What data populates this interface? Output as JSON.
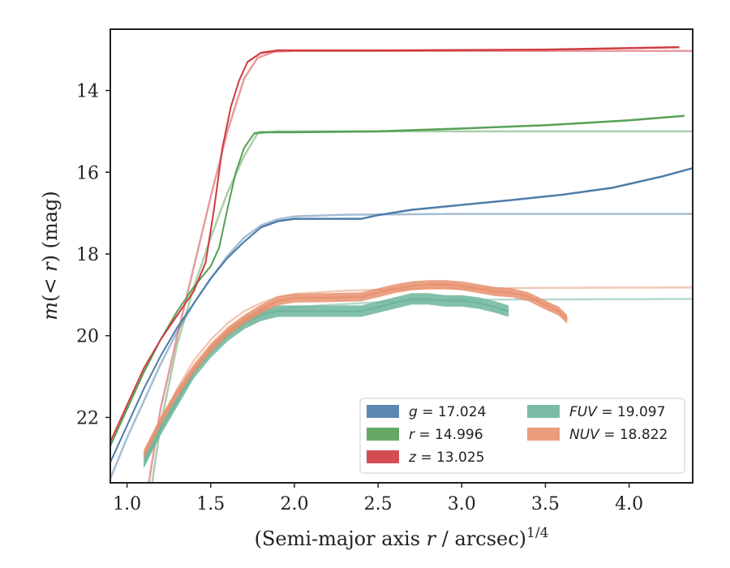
{
  "chart_data": {
    "type": "line",
    "xlabel_main": "(Semi-major axis ",
    "xlabel_var": "r",
    "xlabel_unit": " / arcsec)",
    "xlabel_exp": "1/4",
    "ylabel_main": "m",
    "ylabel_paren": "(< ",
    "ylabel_var": "r",
    "ylabel_close": ") (mag)",
    "xlim": [
      0.9,
      4.38
    ],
    "ylim": [
      23.6,
      12.5
    ],
    "y_inverted": true,
    "xticks": [
      1.0,
      1.5,
      2.0,
      2.5,
      3.0,
      3.5,
      4.0
    ],
    "xtick_labels": [
      "1.0",
      "1.5",
      "2.0",
      "2.5",
      "3.0",
      "3.5",
      "4.0"
    ],
    "yticks": [
      14,
      16,
      18,
      20,
      22
    ],
    "ytick_labels": [
      "14",
      "16",
      "18",
      "20",
      "22"
    ],
    "grid": false,
    "legend_position": "lower-right",
    "legend": [
      {
        "var": "g",
        "text": " = 17.024",
        "color": "#4c7ba8"
      },
      {
        "var": "FUV",
        "text": " = 19.097",
        "color": "#6db59b"
      },
      {
        "var": "r",
        "text": " = 14.996",
        "color": "#55a055"
      },
      {
        "var": "NUV",
        "text": " = 18.822",
        "color": "#e8916e"
      },
      {
        "var": "z",
        "text": " = 13.025",
        "color": "#cf3a3f"
      }
    ],
    "series": [
      {
        "name": "g",
        "color": "#4c7ba8",
        "band_width": 0.05,
        "data": [
          [
            0.9,
            23.1
          ],
          [
            1.0,
            22.2
          ],
          [
            1.1,
            21.3
          ],
          [
            1.2,
            20.5
          ],
          [
            1.3,
            19.8
          ],
          [
            1.4,
            19.2
          ],
          [
            1.5,
            18.6
          ],
          [
            1.6,
            18.1
          ],
          [
            1.7,
            17.7
          ],
          [
            1.8,
            17.35
          ],
          [
            1.9,
            17.2
          ],
          [
            2.0,
            17.14
          ],
          [
            2.2,
            17.14
          ],
          [
            2.4,
            17.14
          ],
          [
            2.5,
            17.05
          ],
          [
            2.7,
            16.92
          ],
          [
            3.0,
            16.8
          ],
          [
            3.3,
            16.68
          ],
          [
            3.6,
            16.55
          ],
          [
            3.9,
            16.38
          ],
          [
            4.2,
            16.1
          ],
          [
            4.38,
            15.9
          ]
        ],
        "model": [
          [
            0.9,
            23.5
          ],
          [
            1.0,
            22.5
          ],
          [
            1.1,
            21.6
          ],
          [
            1.2,
            20.7
          ],
          [
            1.3,
            19.9
          ],
          [
            1.4,
            19.2
          ],
          [
            1.5,
            18.6
          ],
          [
            1.6,
            18.05
          ],
          [
            1.7,
            17.6
          ],
          [
            1.8,
            17.3
          ],
          [
            1.9,
            17.15
          ],
          [
            2.0,
            17.08
          ],
          [
            2.3,
            17.04
          ],
          [
            3.0,
            17.02
          ],
          [
            4.38,
            17.02
          ]
        ]
      },
      {
        "name": "r",
        "color": "#55a055",
        "band_width": 0.05,
        "data": [
          [
            0.9,
            22.7
          ],
          [
            1.0,
            21.8
          ],
          [
            1.1,
            20.9
          ],
          [
            1.2,
            20.1
          ],
          [
            1.3,
            19.4
          ],
          [
            1.4,
            18.8
          ],
          [
            1.5,
            18.3
          ],
          [
            1.55,
            17.85
          ],
          [
            1.6,
            16.9
          ],
          [
            1.65,
            16.0
          ],
          [
            1.7,
            15.4
          ],
          [
            1.76,
            15.05
          ],
          [
            1.8,
            15.02
          ],
          [
            2.0,
            15.02
          ],
          [
            2.5,
            15.0
          ],
          [
            3.0,
            14.93
          ],
          [
            3.5,
            14.85
          ],
          [
            4.0,
            14.73
          ],
          [
            4.33,
            14.62
          ]
        ],
        "model": [
          [
            1.15,
            23.6
          ],
          [
            1.2,
            22.2
          ],
          [
            1.3,
            20.2
          ],
          [
            1.4,
            18.8
          ],
          [
            1.5,
            17.6
          ],
          [
            1.6,
            16.5
          ],
          [
            1.7,
            15.6
          ],
          [
            1.78,
            15.05
          ],
          [
            1.9,
            15.0
          ],
          [
            2.5,
            15.0
          ],
          [
            4.38,
            15.0
          ]
        ]
      },
      {
        "name": "z",
        "color": "#cf3a3f",
        "band_width": 0.05,
        "data": [
          [
            0.9,
            22.6
          ],
          [
            1.0,
            21.7
          ],
          [
            1.1,
            20.8
          ],
          [
            1.2,
            20.1
          ],
          [
            1.3,
            19.5
          ],
          [
            1.4,
            18.9
          ],
          [
            1.47,
            18.2
          ],
          [
            1.52,
            16.9
          ],
          [
            1.57,
            15.4
          ],
          [
            1.62,
            14.4
          ],
          [
            1.67,
            13.75
          ],
          [
            1.72,
            13.3
          ],
          [
            1.8,
            13.08
          ],
          [
            1.9,
            13.02
          ],
          [
            2.5,
            13.02
          ],
          [
            3.5,
            13.0
          ],
          [
            4.3,
            12.94
          ]
        ],
        "model": [
          [
            1.13,
            23.6
          ],
          [
            1.2,
            21.8
          ],
          [
            1.3,
            20.0
          ],
          [
            1.4,
            18.3
          ],
          [
            1.5,
            16.6
          ],
          [
            1.6,
            15.0
          ],
          [
            1.7,
            13.7
          ],
          [
            1.78,
            13.2
          ],
          [
            1.88,
            13.05
          ],
          [
            2.0,
            13.03
          ],
          [
            3.0,
            13.03
          ],
          [
            4.38,
            13.03
          ]
        ]
      },
      {
        "name": "FUV",
        "color": "#6db59b",
        "band_width": 0.28,
        "data": [
          [
            1.1,
            23.1
          ],
          [
            1.2,
            22.3
          ],
          [
            1.3,
            21.6
          ],
          [
            1.4,
            20.9
          ],
          [
            1.5,
            20.4
          ],
          [
            1.6,
            20.0
          ],
          [
            1.7,
            19.7
          ],
          [
            1.8,
            19.5
          ],
          [
            1.9,
            19.4
          ],
          [
            2.0,
            19.4
          ],
          [
            2.2,
            19.4
          ],
          [
            2.4,
            19.4
          ],
          [
            2.5,
            19.3
          ],
          [
            2.6,
            19.2
          ],
          [
            2.7,
            19.1
          ],
          [
            2.8,
            19.1
          ],
          [
            2.9,
            19.15
          ],
          [
            3.0,
            19.15
          ],
          [
            3.1,
            19.2
          ],
          [
            3.2,
            19.3
          ],
          [
            3.28,
            19.4
          ]
        ],
        "model": [
          [
            1.1,
            23.2
          ],
          [
            1.2,
            22.3
          ],
          [
            1.3,
            21.5
          ],
          [
            1.4,
            20.8
          ],
          [
            1.5,
            20.3
          ],
          [
            1.6,
            19.9
          ],
          [
            1.7,
            19.65
          ],
          [
            1.8,
            19.45
          ],
          [
            1.9,
            19.35
          ],
          [
            2.0,
            19.3
          ],
          [
            2.2,
            19.25
          ],
          [
            2.5,
            19.18
          ],
          [
            3.0,
            19.12
          ],
          [
            4.38,
            19.1
          ]
        ]
      },
      {
        "name": "NUV",
        "color": "#e8916e",
        "band_width": 0.22,
        "data": [
          [
            1.1,
            22.9
          ],
          [
            1.2,
            22.1
          ],
          [
            1.3,
            21.4
          ],
          [
            1.4,
            20.8
          ],
          [
            1.5,
            20.3
          ],
          [
            1.6,
            19.9
          ],
          [
            1.7,
            19.6
          ],
          [
            1.8,
            19.35
          ],
          [
            1.9,
            19.15
          ],
          [
            2.0,
            19.08
          ],
          [
            2.2,
            19.07
          ],
          [
            2.4,
            19.05
          ],
          [
            2.5,
            18.95
          ],
          [
            2.6,
            18.85
          ],
          [
            2.7,
            18.78
          ],
          [
            2.8,
            18.75
          ],
          [
            2.9,
            18.75
          ],
          [
            3.0,
            18.78
          ],
          [
            3.1,
            18.85
          ],
          [
            3.2,
            18.92
          ],
          [
            3.3,
            18.95
          ],
          [
            3.4,
            19.05
          ],
          [
            3.5,
            19.25
          ],
          [
            3.58,
            19.4
          ],
          [
            3.63,
            19.6
          ]
        ],
        "model": [
          [
            1.1,
            23.0
          ],
          [
            1.2,
            22.1
          ],
          [
            1.3,
            21.3
          ],
          [
            1.4,
            20.6
          ],
          [
            1.5,
            20.1
          ],
          [
            1.6,
            19.7
          ],
          [
            1.7,
            19.4
          ],
          [
            1.8,
            19.2
          ],
          [
            1.9,
            19.05
          ],
          [
            2.0,
            18.98
          ],
          [
            2.3,
            18.9
          ],
          [
            2.8,
            18.85
          ],
          [
            3.5,
            18.83
          ],
          [
            4.38,
            18.82
          ]
        ]
      }
    ]
  }
}
